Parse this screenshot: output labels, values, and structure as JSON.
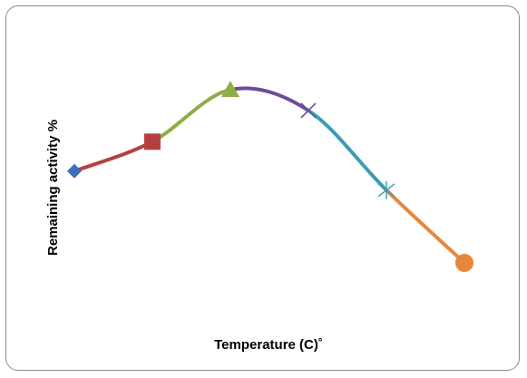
{
  "chart_data": {
    "type": "line",
    "title": "",
    "xlabel": "Temperature (C)˚",
    "ylabel": "Remaining activity %",
    "grid": false,
    "legend": "none",
    "x": [
      1,
      2,
      3,
      4,
      5,
      6
    ],
    "y": [
      26.5,
      35,
      50,
      44,
      21,
      0
    ],
    "xlim": [
      1,
      6
    ],
    "ylim": [
      0,
      50
    ],
    "smooth": true,
    "segments": [
      {
        "from": 0,
        "to": 1,
        "color": "#B5413F"
      },
      {
        "from": 1,
        "to": 2,
        "color": "#8FAE48"
      },
      {
        "from": 2,
        "to": 3,
        "color": "#6E4A9C"
      },
      {
        "from": 3,
        "to": 4,
        "color": "#3A9DB5"
      },
      {
        "from": 4,
        "to": 5,
        "color": "#E8873A"
      }
    ],
    "markers": [
      {
        "shape": "diamond",
        "color": "#3F6FB5"
      },
      {
        "shape": "square",
        "color": "#B5413F"
      },
      {
        "shape": "triangle",
        "color": "#8FAE48"
      },
      {
        "shape": "x",
        "color": "#6E4A9C"
      },
      {
        "shape": "star",
        "color": "#3A9DB5"
      },
      {
        "shape": "circle",
        "color": "#E8873A"
      }
    ]
  }
}
